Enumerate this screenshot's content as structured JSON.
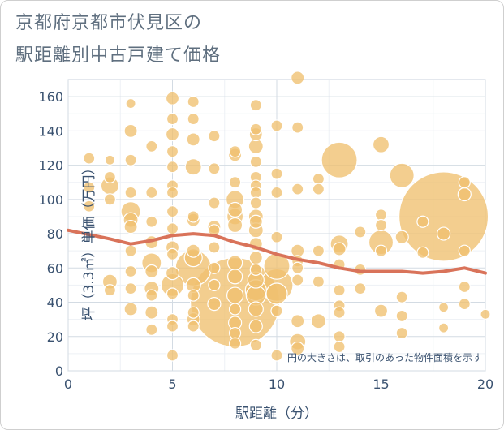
{
  "title_line1": "京都府京都市伏見区の",
  "title_line2": "駅距離別中古戸建て価格",
  "chart_data": {
    "type": "scatter",
    "xlabel": "駅距離（分）",
    "ylabel": "坪（3.3㎡）単価（万円）",
    "xlim": [
      0,
      20
    ],
    "ylim": [
      0,
      170
    ],
    "xticks": [
      0,
      5,
      10,
      15,
      20
    ],
    "yticks": [
      0,
      20,
      40,
      60,
      80,
      100,
      120,
      140,
      160
    ],
    "annotation": "円の大きさは、取引のあった物件面積を示す",
    "bubble_color": "#f0c070",
    "line_color": "#d9735a",
    "points": [
      [
        1,
        124,
        7
      ],
      [
        1,
        107,
        7
      ],
      [
        1,
        96,
        7
      ],
      [
        2,
        123,
        6
      ],
      [
        2,
        113,
        7
      ],
      [
        2,
        108,
        11
      ],
      [
        2,
        100,
        7
      ],
      [
        2,
        52,
        9
      ],
      [
        2,
        47,
        7
      ],
      [
        3,
        156,
        6
      ],
      [
        3,
        140,
        8
      ],
      [
        3,
        123,
        7
      ],
      [
        3,
        104,
        7
      ],
      [
        3,
        93,
        12
      ],
      [
        3,
        88,
        9
      ],
      [
        3,
        84,
        8
      ],
      [
        3,
        70,
        7
      ],
      [
        3,
        58,
        7
      ],
      [
        3,
        48,
        7
      ],
      [
        3,
        36,
        8
      ],
      [
        4,
        131,
        7
      ],
      [
        4,
        104,
        7
      ],
      [
        4,
        87,
        7
      ],
      [
        4,
        75,
        8
      ],
      [
        4,
        63,
        12
      ],
      [
        4,
        58,
        8
      ],
      [
        4,
        48,
        9
      ],
      [
        4,
        44,
        7
      ],
      [
        4,
        34,
        8
      ],
      [
        4,
        24,
        7
      ],
      [
        5,
        159,
        8
      ],
      [
        5,
        147,
        7
      ],
      [
        5,
        138,
        8
      ],
      [
        5,
        128,
        7
      ],
      [
        5,
        119,
        7
      ],
      [
        5,
        108,
        7
      ],
      [
        5,
        104,
        7
      ],
      [
        5,
        93,
        7
      ],
      [
        5,
        83,
        7
      ],
      [
        5,
        72,
        8
      ],
      [
        5,
        68,
        7
      ],
      [
        5,
        57,
        8
      ],
      [
        5,
        50,
        14
      ],
      [
        5,
        45,
        7
      ],
      [
        5,
        30,
        7
      ],
      [
        5,
        26,
        7
      ],
      [
        5,
        9,
        7
      ],
      [
        6,
        157,
        7
      ],
      [
        6,
        147,
        7
      ],
      [
        6,
        135,
        8
      ],
      [
        6,
        119,
        10
      ],
      [
        6,
        90,
        7
      ],
      [
        6,
        88,
        8
      ],
      [
        6,
        70,
        8
      ],
      [
        6,
        66,
        11
      ],
      [
        6,
        60,
        22
      ],
      [
        6,
        50,
        9
      ],
      [
        6,
        44,
        7
      ],
      [
        6,
        34,
        7
      ],
      [
        6,
        30,
        8
      ],
      [
        6,
        26,
        7
      ],
      [
        7,
        137,
        7
      ],
      [
        7,
        118,
        7
      ],
      [
        7,
        98,
        7
      ],
      [
        7,
        84,
        8
      ],
      [
        7,
        82,
        7
      ],
      [
        7,
        72,
        7
      ],
      [
        7,
        60,
        7
      ],
      [
        7,
        50,
        7
      ],
      [
        7,
        39,
        8
      ],
      [
        8,
        128,
        7
      ],
      [
        8,
        126,
        8
      ],
      [
        8,
        110,
        7
      ],
      [
        8,
        100,
        11
      ],
      [
        8,
        94,
        9
      ],
      [
        8,
        90,
        10
      ],
      [
        8,
        85,
        9
      ],
      [
        8,
        63,
        9
      ],
      [
        8,
        55,
        9
      ],
      [
        8,
        44,
        10
      ],
      [
        8,
        40,
        55
      ],
      [
        8,
        36,
        7
      ],
      [
        8,
        28,
        8
      ],
      [
        8,
        22,
        7
      ],
      [
        8,
        16,
        7
      ],
      [
        9,
        155,
        7
      ],
      [
        9,
        141,
        7
      ],
      [
        9,
        138,
        8
      ],
      [
        9,
        131,
        9
      ],
      [
        9,
        122,
        7
      ],
      [
        9,
        113,
        7
      ],
      [
        9,
        108,
        7
      ],
      [
        9,
        104,
        7
      ],
      [
        9,
        98,
        7
      ],
      [
        9,
        90,
        9
      ],
      [
        9,
        87,
        8
      ],
      [
        9,
        82,
        9
      ],
      [
        9,
        74,
        8
      ],
      [
        9,
        66,
        8
      ],
      [
        9,
        59,
        7
      ],
      [
        9,
        53,
        10
      ],
      [
        9,
        47,
        13
      ],
      [
        9,
        44,
        12
      ],
      [
        9,
        36,
        9
      ],
      [
        9,
        26,
        8
      ],
      [
        9,
        15,
        7
      ],
      [
        10,
        143,
        7
      ],
      [
        10,
        115,
        7
      ],
      [
        10,
        104,
        7
      ],
      [
        10,
        78,
        7
      ],
      [
        10,
        61,
        16
      ],
      [
        10,
        50,
        20
      ],
      [
        10,
        45,
        13
      ],
      [
        10,
        35,
        7
      ],
      [
        10,
        9,
        7
      ],
      [
        11,
        171,
        8
      ],
      [
        11,
        142,
        7
      ],
      [
        11,
        106,
        7
      ],
      [
        11,
        70,
        8
      ],
      [
        11,
        64,
        7
      ],
      [
        11,
        60,
        7
      ],
      [
        11,
        53,
        7
      ],
      [
        11,
        29,
        8
      ],
      [
        11,
        17,
        10
      ],
      [
        11,
        13,
        8
      ],
      [
        12,
        112,
        7
      ],
      [
        12,
        106,
        7
      ],
      [
        12,
        70,
        7
      ],
      [
        12,
        52,
        7
      ],
      [
        12,
        29,
        9
      ],
      [
        13,
        123,
        22
      ],
      [
        13,
        74,
        11
      ],
      [
        13,
        71,
        8
      ],
      [
        13,
        62,
        7
      ],
      [
        13,
        47,
        7
      ],
      [
        13,
        38,
        7
      ],
      [
        13,
        34,
        7
      ],
      [
        13,
        20,
        7
      ],
      [
        13,
        14,
        7
      ],
      [
        14,
        81,
        7
      ],
      [
        14,
        59,
        7
      ],
      [
        14,
        48,
        7
      ],
      [
        15,
        132,
        10
      ],
      [
        15,
        91,
        7
      ],
      [
        15,
        85,
        7
      ],
      [
        15,
        75,
        15
      ],
      [
        15,
        70,
        7
      ],
      [
        15,
        35,
        8
      ],
      [
        16,
        114,
        15
      ],
      [
        16,
        78,
        8
      ],
      [
        16,
        43,
        7
      ],
      [
        16,
        32,
        7
      ],
      [
        16,
        22,
        7
      ],
      [
        17,
        87,
        7
      ],
      [
        17,
        69,
        7
      ],
      [
        18,
        90,
        55
      ],
      [
        18,
        80,
        8
      ],
      [
        18,
        37,
        6
      ],
      [
        18,
        25,
        6
      ],
      [
        19,
        110,
        7
      ],
      [
        19,
        103,
        8
      ],
      [
        19,
        70,
        7
      ],
      [
        19,
        49,
        7
      ],
      [
        19,
        39,
        7
      ],
      [
        20,
        33,
        6
      ]
    ],
    "line": [
      [
        0,
        82
      ],
      [
        2,
        77
      ],
      [
        3,
        74
      ],
      [
        4,
        76
      ],
      [
        5,
        79
      ],
      [
        6,
        80
      ],
      [
        7,
        79
      ],
      [
        8,
        75
      ],
      [
        9,
        72
      ],
      [
        10,
        68
      ],
      [
        11,
        65
      ],
      [
        12,
        63
      ],
      [
        13,
        60
      ],
      [
        14,
        58
      ],
      [
        15,
        58
      ],
      [
        16,
        58
      ],
      [
        17,
        57
      ],
      [
        18,
        58
      ],
      [
        19,
        60
      ],
      [
        20,
        57
      ]
    ]
  }
}
